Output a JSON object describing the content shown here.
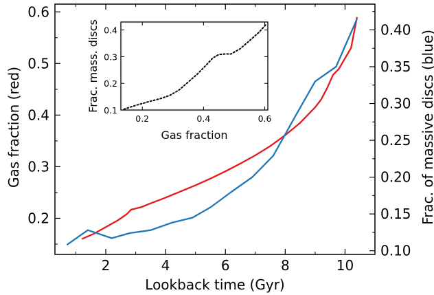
{
  "chart_data": [
    {
      "type": "line",
      "role": "main",
      "xlabel": "Lookback time (Gyr)",
      "ylabel_left": "Gas fraction (red)",
      "ylabel_right": "Frac. of massive discs (blue)",
      "xlim": [
        0.3,
        11.0
      ],
      "ylim_left": [
        0.13,
        0.615
      ],
      "ylim_right": [
        0.095,
        0.435
      ],
      "xticks": [
        2,
        4,
        6,
        8,
        10
      ],
      "yticks_left": [
        0.2,
        0.3,
        0.4,
        0.5,
        0.6
      ],
      "yticks_right": [
        0.1,
        0.15,
        0.2,
        0.25,
        0.3,
        0.35,
        0.4
      ],
      "grid": false,
      "series": [
        {
          "axis": "left",
          "color": "#e31a1c",
          "x": [
            1.2,
            1.6,
            2.0,
            2.4,
            2.7,
            2.85,
            3.0,
            3.2,
            3.5,
            4.0,
            4.5,
            5.0,
            5.5,
            6.0,
            6.5,
            7.0,
            7.5,
            8.0,
            8.5,
            9.0,
            9.2,
            9.4,
            9.6,
            9.8,
            10.0,
            10.2,
            10.4
          ],
          "y": [
            0.16,
            0.17,
            0.183,
            0.196,
            0.208,
            0.217,
            0.219,
            0.222,
            0.229,
            0.24,
            0.252,
            0.264,
            0.277,
            0.291,
            0.306,
            0.322,
            0.34,
            0.361,
            0.385,
            0.415,
            0.43,
            0.452,
            0.478,
            0.49,
            0.51,
            0.53,
            0.59
          ]
        },
        {
          "axis": "right",
          "color": "#1f77b4",
          "x": [
            0.7,
            1.4,
            2.2,
            2.8,
            3.5,
            4.2,
            4.9,
            5.5,
            6.2,
            6.9,
            7.6,
            8.3,
            9.0,
            9.7,
            10.4
          ],
          "y": [
            0.108,
            0.128,
            0.117,
            0.124,
            0.128,
            0.138,
            0.145,
            0.159,
            0.18,
            0.2,
            0.229,
            0.28,
            0.33,
            0.35,
            0.415
          ]
        }
      ]
    },
    {
      "type": "line",
      "role": "inset",
      "xlabel": "Gas fraction",
      "ylabel": "Frac. mass. discs",
      "xlim": [
        0.13,
        0.61
      ],
      "ylim": [
        0.1,
        0.43
      ],
      "xticks": [
        0.2,
        0.4,
        0.6
      ],
      "yticks": [
        0.1,
        0.2,
        0.3,
        0.4
      ],
      "grid": false,
      "series": [
        {
          "color": "#000000",
          "linestyle": "dotted",
          "x": [
            0.14,
            0.18,
            0.22,
            0.26,
            0.29,
            0.32,
            0.35,
            0.38,
            0.41,
            0.43,
            0.45,
            0.47,
            0.49,
            0.52,
            0.55,
            0.58,
            0.605
          ],
          "y": [
            0.103,
            0.118,
            0.131,
            0.143,
            0.155,
            0.175,
            0.205,
            0.235,
            0.27,
            0.295,
            0.308,
            0.31,
            0.31,
            0.33,
            0.36,
            0.39,
            0.422
          ]
        }
      ]
    }
  ]
}
